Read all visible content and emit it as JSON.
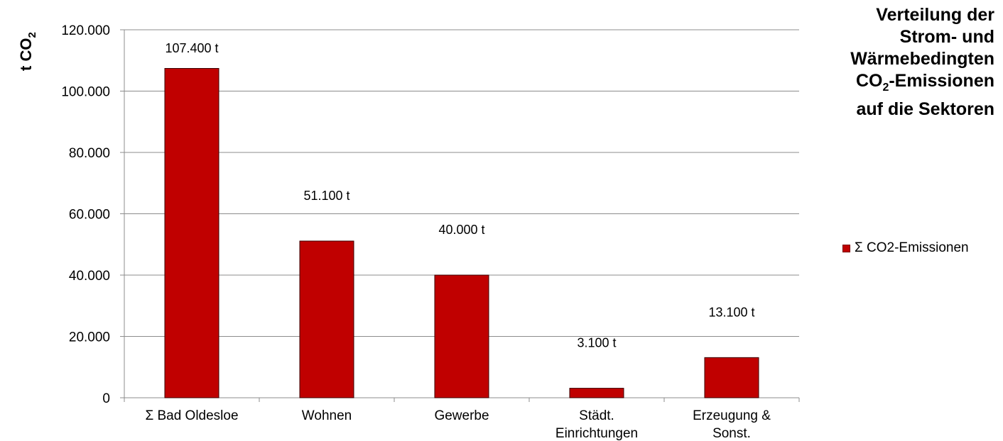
{
  "chart_data": {
    "type": "bar",
    "title_lines": [
      "Verteilung der",
      "Strom- und",
      "Wärmebedingten"
    ],
    "title_co2_base": "CO",
    "title_co2_sub": "2",
    "title_co2_rest": "-Emissionen",
    "title_last": "auf die Sektoren",
    "ylabel_base": "t CO",
    "ylabel_sub": "2",
    "categories": [
      [
        "Σ Bad Oldesloe"
      ],
      [
        "Wohnen"
      ],
      [
        "Gewerbe"
      ],
      [
        "Städt.",
        "Einrichtungen"
      ],
      [
        "Erzeugung &",
        "Sonst."
      ]
    ],
    "series": [
      {
        "name": "Σ CO2-Emissionen",
        "color": "#c00000",
        "values": [
          107400,
          51100,
          40000,
          3100,
          13100
        ],
        "data_labels": [
          "107.400 t",
          "51.100 t",
          "40.000 t",
          "3.100 t",
          "13.100 t"
        ]
      }
    ],
    "ylim": [
      0,
      120000
    ],
    "yticks": [
      0,
      20000,
      40000,
      60000,
      80000,
      100000,
      120000
    ],
    "ytick_labels": [
      "0",
      "20.000",
      "40.000",
      "60.000",
      "80.000",
      "100.000",
      "120.000"
    ],
    "grid": true,
    "legend_position": "right"
  }
}
